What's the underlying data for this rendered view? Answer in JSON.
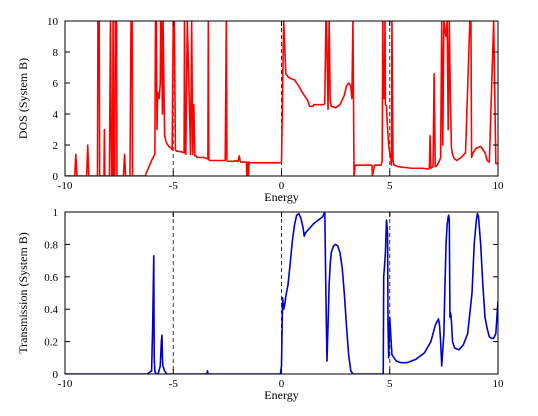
{
  "chart_data": [
    {
      "type": "line",
      "xlabel": "Energy",
      "ylabel": "DOS (System B)",
      "xlim": [
        -10,
        10
      ],
      "ylim": [
        0,
        10
      ],
      "xticks": [
        -10,
        -5,
        0,
        5,
        10
      ],
      "yticks": [
        0,
        2,
        4,
        6,
        8,
        10
      ],
      "grid": false,
      "vlines": [
        -5,
        0,
        5
      ],
      "series": [
        {
          "color": "#ff0000",
          "x": [
            -10.0,
            -9.7,
            -9.55,
            -9.5,
            -9.45,
            -9.2,
            -9.0,
            -8.95,
            -8.9,
            -8.7,
            -8.5,
            -8.48,
            -8.42,
            -8.4,
            -8.3,
            -8.2,
            -8.18,
            -8.16,
            -8.1,
            -7.95,
            -7.9,
            -7.85,
            -7.8,
            -7.78,
            -7.75,
            -7.7,
            -7.68,
            -7.62,
            -7.6,
            -7.4,
            -7.3,
            -7.25,
            -7.2,
            -7.0,
            -6.95,
            -6.9,
            -6.88,
            -6.85,
            -6.8,
            -6.3,
            -6.0,
            -5.85,
            -5.82,
            -5.78,
            -5.75,
            -5.72,
            -5.65,
            -5.6,
            -5.58,
            -5.55,
            -5.5,
            -5.47,
            -5.4,
            -5.35,
            -5.3,
            -5.25,
            -5.2,
            -5.1,
            -5.05,
            -5.0,
            -4.95,
            -4.9,
            -4.85,
            -4.8,
            -4.6,
            -4.5,
            -4.48,
            -4.46,
            -4.42,
            -4.35,
            -4.2,
            -4.15,
            -4.1,
            -4.05,
            -4.0,
            -3.95,
            -3.9,
            -3.85,
            -3.8,
            -3.6,
            -3.4,
            -3.38,
            -3.36,
            -3.33,
            -3.3,
            -3.2,
            -3.0,
            -2.8,
            -2.6,
            -2.55,
            -2.52,
            -2.5,
            -2.47,
            -2.4,
            -2.2,
            -2.1,
            -2.05,
            -2.0,
            -1.95,
            -1.9,
            -1.8,
            -1.7,
            -1.62,
            -1.6,
            -1.55,
            -1.52,
            -1.5,
            -1.45,
            -1.4,
            -1.2,
            -1.0,
            -0.5,
            -0.05,
            0.0,
            0.1,
            0.2,
            0.25,
            0.3,
            0.4,
            0.6,
            0.8,
            1.0,
            1.2,
            1.3,
            1.45,
            1.5,
            1.6,
            1.8,
            1.95,
            2.0,
            2.05,
            2.08,
            2.15,
            2.2,
            2.25,
            2.3,
            2.5,
            2.7,
            2.9,
            3.0,
            3.1,
            3.2,
            3.25,
            3.3,
            3.35,
            3.4,
            3.5,
            3.6,
            3.8,
            4.0,
            4.15,
            4.18,
            4.2,
            4.3,
            4.5,
            4.55,
            4.6,
            4.65,
            4.68,
            4.7,
            4.75,
            4.78,
            4.8,
            4.85,
            4.9,
            4.95,
            5.0,
            5.05,
            5.08,
            5.1,
            5.15,
            5.2,
            5.4,
            6.0,
            6.5,
            6.8,
            6.83,
            6.86,
            6.9,
            7.0,
            7.05,
            7.1,
            7.2,
            7.3,
            7.35,
            7.4,
            7.45,
            7.5,
            7.55,
            7.6,
            7.65,
            7.7,
            7.75,
            7.8,
            7.85,
            7.9,
            7.95,
            8.0,
            8.1,
            8.3,
            8.5,
            8.7,
            8.75,
            8.78,
            8.8,
            8.85,
            9.0,
            9.2,
            9.4,
            9.5,
            9.6,
            9.8,
            9.9,
            10.0
          ],
          "y": [
            0.0,
            0.0,
            0.0,
            1.4,
            0.0,
            0.0,
            0.0,
            2.0,
            0.0,
            0.0,
            0.0,
            10.0,
            10.0,
            0.0,
            0.0,
            0.0,
            3.0,
            0.0,
            0.0,
            0.0,
            10.0,
            0.0,
            0.0,
            10.0,
            0.0,
            0.0,
            10.0,
            10.0,
            0.0,
            0.0,
            0.0,
            1.4,
            0.0,
            0.0,
            10.0,
            10.0,
            0.0,
            0.0,
            0.0,
            0.0,
            1.0,
            1.4,
            10.0,
            10.0,
            3.0,
            5.4,
            5.0,
            6.0,
            10.0,
            10.0,
            4.0,
            10.0,
            2.6,
            2.3,
            2.1,
            2.0,
            1.9,
            1.8,
            1.7,
            10.0,
            10.0,
            1.7,
            1.6,
            1.6,
            1.55,
            1.5,
            10.0,
            1.5,
            1.4,
            10.0,
            1.4,
            10.0,
            1.4,
            4.6,
            1.3,
            1.3,
            1.2,
            1.2,
            1.2,
            1.2,
            1.1,
            10.0,
            1.1,
            1.0,
            1.0,
            1.0,
            1.0,
            1.0,
            1.0,
            10.0,
            1.0,
            0.95,
            0.95,
            0.95,
            0.95,
            1.0,
            0.95,
            0.95,
            1.3,
            0.9,
            0.9,
            0.9,
            0.9,
            0.0,
            0.9,
            0.0,
            0.9,
            0.85,
            0.85,
            0.85,
            0.85,
            0.85,
            0.85,
            0.9,
            10.0,
            6.6,
            6.5,
            6.4,
            6.3,
            6.2,
            5.8,
            5.3,
            4.9,
            4.5,
            4.5,
            4.6,
            4.6,
            4.6,
            4.6,
            4.7,
            10.0,
            10.0,
            4.3,
            10.0,
            4.9,
            4.5,
            4.4,
            4.6,
            5.2,
            5.8,
            6.0,
            5.8,
            5.0,
            10.0,
            0.0,
            0.7,
            0.7,
            0.7,
            0.7,
            0.7,
            0.7,
            0.7,
            0.0,
            0.7,
            0.7,
            0.7,
            0.7,
            1.0,
            10.0,
            5.0,
            5.0,
            10.0,
            4.6,
            4.5,
            3.0,
            2.0,
            1.5,
            1.2,
            0.7,
            10.0,
            1.0,
            0.7,
            0.6,
            0.5,
            0.5,
            0.45,
            0.5,
            2.6,
            0.5,
            0.6,
            6.6,
            0.6,
            0.7,
            1.0,
            1.2,
            10.0,
            2.0,
            10.0,
            9.4,
            9.0,
            10.0,
            3.0,
            10.0,
            5.0,
            1.8,
            1.4,
            1.2,
            1.1,
            1.0,
            1.2,
            1.5,
            10.0,
            10.0,
            1.2,
            1.3,
            1.5,
            1.8,
            1.9,
            1.5,
            1.0,
            0.9,
            10.0,
            0.8,
            0.8
          ]
        }
      ]
    },
    {
      "type": "line",
      "xlabel": "Energy",
      "ylabel": "Transmission (System B)",
      "xlim": [
        -10,
        10
      ],
      "ylim": [
        0,
        1
      ],
      "xticks": [
        -10,
        -5,
        0,
        5,
        10
      ],
      "yticks": [
        0,
        0.2,
        0.4,
        0.6,
        0.8,
        1
      ],
      "grid": false,
      "vlines": [
        -5,
        0,
        5
      ],
      "series": [
        {
          "color": "#0000cc",
          "x": [
            -10.0,
            -7.0,
            -6.2,
            -6.0,
            -5.95,
            -5.9,
            -5.88,
            -5.85,
            -5.8,
            -5.75,
            -5.7,
            -5.6,
            -5.55,
            -5.52,
            -5.5,
            -5.48,
            -5.4,
            -5.3,
            -5.0,
            -4.0,
            -3.45,
            -3.42,
            -3.39,
            -3.3,
            -2.0,
            -1.0,
            -0.2,
            -0.05,
            0.0,
            0.05,
            0.1,
            0.15,
            0.2,
            0.3,
            0.4,
            0.5,
            0.6,
            0.7,
            0.8,
            0.9,
            1.0,
            1.05,
            1.1,
            1.3,
            1.5,
            1.7,
            1.9,
            2.0,
            2.05,
            2.1,
            2.15,
            2.2,
            2.25,
            2.3,
            2.4,
            2.5,
            2.6,
            2.7,
            2.8,
            2.9,
            3.0,
            3.1,
            3.2,
            3.3,
            3.4,
            3.6,
            4.0,
            4.5,
            4.7,
            4.72,
            4.75,
            4.8,
            4.85,
            4.9,
            4.92,
            4.95,
            5.0,
            5.1,
            5.3,
            5.5,
            5.8,
            6.2,
            6.6,
            6.9,
            7.1,
            7.25,
            7.3,
            7.35,
            7.4,
            7.5,
            7.55,
            7.6,
            7.65,
            7.7,
            7.72,
            7.75,
            7.78,
            7.8,
            7.83,
            7.86,
            7.9,
            8.0,
            8.2,
            8.4,
            8.6,
            8.8,
            8.9,
            9.0,
            9.05,
            9.1,
            9.2,
            9.3,
            9.4,
            9.5,
            9.6,
            9.7,
            9.8,
            9.9,
            10.0
          ],
          "y": [
            0.0,
            0.0,
            0.0,
            0.02,
            0.3,
            0.73,
            0.1,
            0.02,
            0.0,
            0.0,
            0.0,
            0.05,
            0.2,
            0.24,
            0.1,
            0.05,
            0.02,
            0.0,
            0.0,
            0.0,
            0.0,
            0.02,
            0.0,
            0.0,
            0.0,
            0.0,
            0.0,
            0.0,
            0.05,
            0.47,
            0.4,
            0.43,
            0.48,
            0.55,
            0.68,
            0.82,
            0.92,
            0.98,
            0.99,
            0.96,
            0.9,
            0.85,
            0.87,
            0.9,
            0.93,
            0.95,
            0.97,
            1.0,
            0.5,
            0.08,
            0.3,
            0.55,
            0.68,
            0.75,
            0.79,
            0.8,
            0.79,
            0.75,
            0.66,
            0.5,
            0.3,
            0.12,
            0.02,
            0.0,
            0.0,
            0.0,
            0.0,
            0.0,
            0.0,
            0.6,
            0.65,
            0.75,
            0.95,
            0.87,
            0.3,
            0.1,
            0.35,
            0.12,
            0.08,
            0.07,
            0.07,
            0.09,
            0.13,
            0.2,
            0.3,
            0.34,
            0.3,
            0.2,
            0.05,
            0.25,
            0.55,
            0.8,
            0.92,
            0.97,
            0.98,
            0.95,
            0.35,
            0.38,
            0.36,
            0.3,
            0.2,
            0.16,
            0.15,
            0.18,
            0.25,
            0.5,
            0.8,
            0.95,
            0.99,
            0.97,
            0.8,
            0.55,
            0.35,
            0.28,
            0.23,
            0.22,
            0.22,
            0.25,
            0.45
          ]
        }
      ]
    }
  ]
}
